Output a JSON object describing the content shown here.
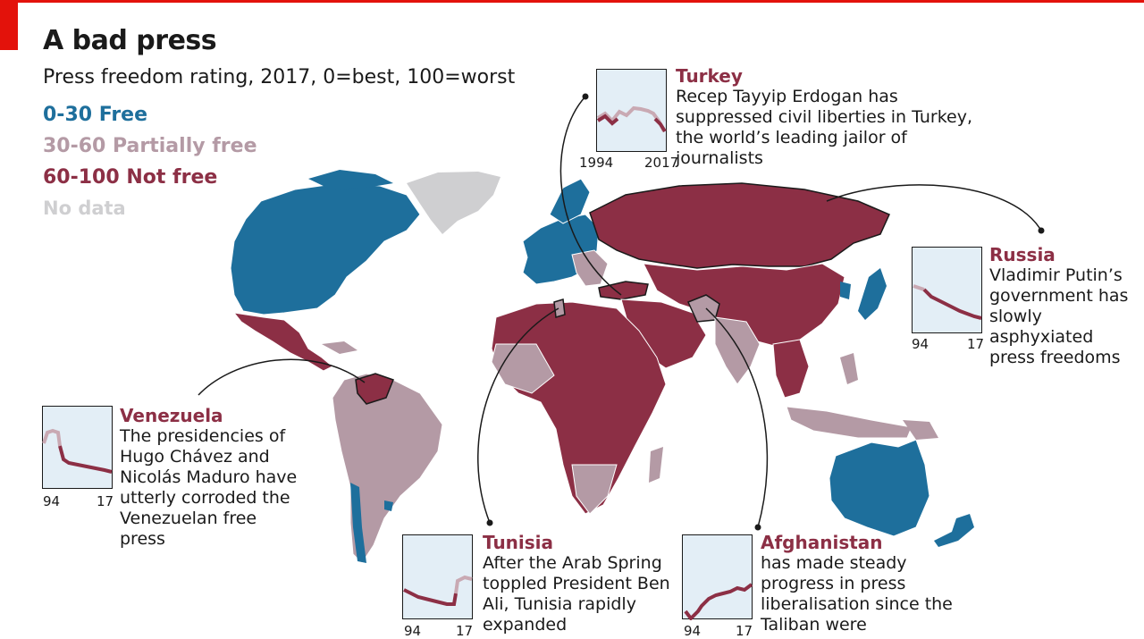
{
  "title": "A bad press",
  "subtitle": "Press freedom rating, 2017, 0=best, 100=worst",
  "legend": [
    {
      "label": "0-30 Free",
      "color": "#1e6f9c"
    },
    {
      "label": "30-60 Partially free",
      "color": "#b49aa5"
    },
    {
      "label": "60-100 Not free",
      "color": "#8c2f45"
    },
    {
      "label": "No data",
      "color": "#cfcfd1"
    }
  ],
  "colors": {
    "free": "#1e6f9c",
    "partial": "#b49aa5",
    "notfree": "#8c2f45",
    "nodata": "#cfcfd1",
    "spark_bg": "#e3eef6",
    "spark_line_notfree": "#8c2f45",
    "spark_line_partial": "#c9a9b3"
  },
  "callouts": {
    "turkey": {
      "name": "Turkey",
      "text": "Recep Tayyip Erdogan has suppressed civil liberties in Turkey, the world’s leading jailor of journalists",
      "axis_start": "1994",
      "axis_end": "2017"
    },
    "russia": {
      "name": "Russia",
      "text": "Vladimir Putin’s government has slowly asphyxiated press freedoms",
      "axis_start": "94",
      "axis_end": "17"
    },
    "venezuela": {
      "name": "Venezuela",
      "text": "The presidencies of Hugo Chávez and Nicolás Maduro have utterly corroded the Venezuelan free press",
      "axis_start": "94",
      "axis_end": "17"
    },
    "tunisia": {
      "name": "Tunisia",
      "text": "After the Arab Spring toppled President Ben Ali, Tunisia rapidly expanded",
      "axis_start": "94",
      "axis_end": "17"
    },
    "afghanistan": {
      "name": "Afghanistan",
      "text": "has made steady progress in press liberalisation since the Taliban were",
      "axis_start": "94",
      "axis_end": "17"
    }
  }
}
